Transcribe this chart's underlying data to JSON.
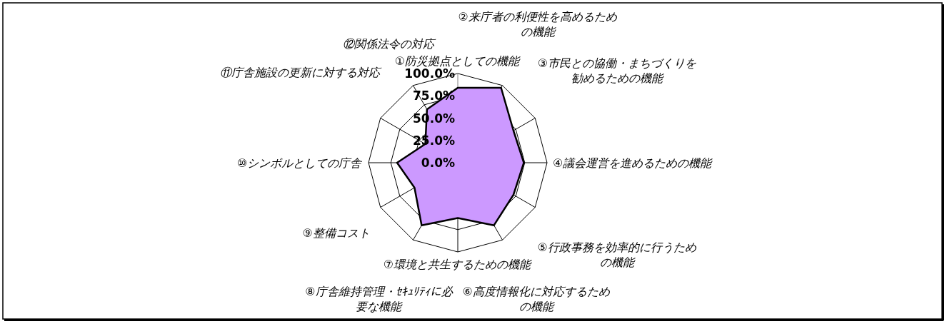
{
  "chart_data": {
    "type": "radar",
    "categories": [
      "①防災拠点としての機能",
      "②来庁者の利便性を高めるための機能",
      "③市民との協働・まちづくりを勧めるための機能",
      "④議会運営を進めるための機能",
      "⑤行政事務を効率的に行うための機能",
      "⑥高度情報化に対応するための機能",
      "⑦環境と共生するための機能",
      "⑧庁舎維持管理・ｾｷｭﾘﾃｨに必要な機能",
      "⑨整備コスト",
      "⑩シンボルとしての庁舎",
      "⑪庁舎施設の更新に対する対応",
      "⑫関係法令の対応"
    ],
    "series": [
      {
        "color": "#cc99ff",
        "values": [
          84,
          97,
          72,
          74,
          72,
          81,
          62,
          81,
          56,
          68,
          42,
          69
        ]
      }
    ],
    "ylim": [
      0,
      100
    ],
    "yticks": [
      {
        "value": 0,
        "label": "0.0%"
      },
      {
        "value": 25,
        "label": "25.0%"
      },
      {
        "value": 50,
        "label": "50.0%"
      },
      {
        "value": 75,
        "label": "75.0%"
      },
      {
        "value": 100,
        "label": "100.0%"
      }
    ],
    "grid": true
  }
}
